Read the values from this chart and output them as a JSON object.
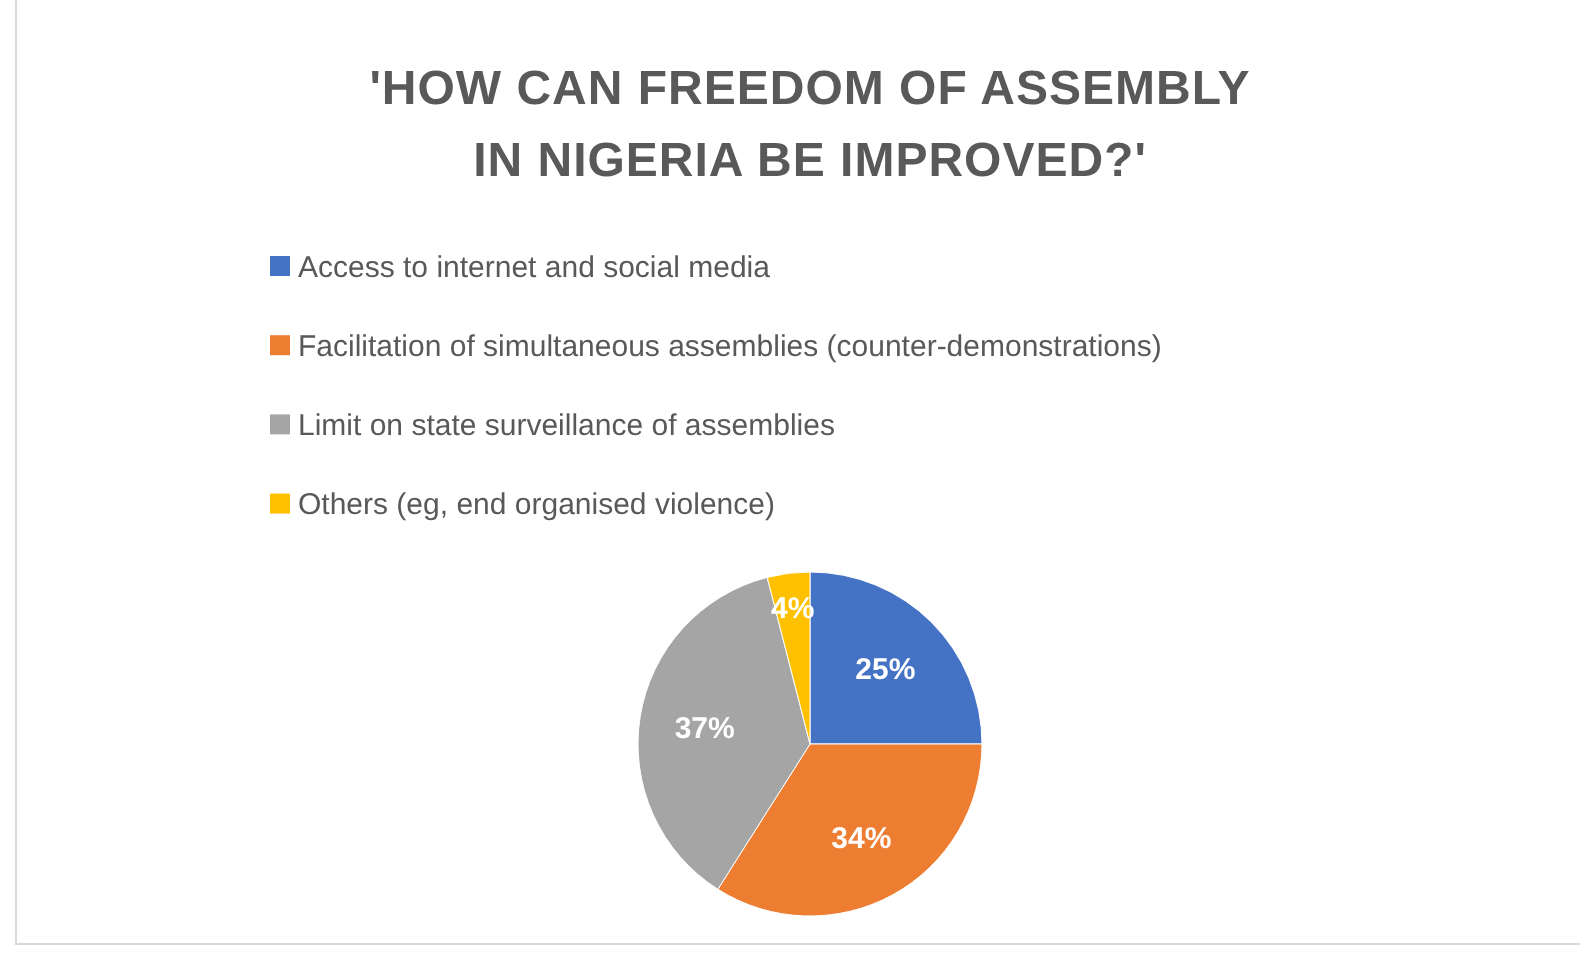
{
  "chart_data": {
    "type": "pie",
    "title": "'HOW CAN FREEDOM OF ASSEMBLY IN NIGERIA BE IMPROVED?'",
    "categories": [
      "Access to internet and social media",
      "Facilitation of simultaneous assemblies (counter-demonstrations)",
      "Limit on state surveillance of assemblies",
      "Others (eg, end organised violence)"
    ],
    "values": [
      25,
      34,
      37,
      4
    ],
    "colors": [
      "#4472c4",
      "#ed7d31",
      "#a5a5a5",
      "#ffc000"
    ],
    "value_labels": [
      "25%",
      "34%",
      "37%",
      "4%"
    ],
    "legend": "top left"
  }
}
